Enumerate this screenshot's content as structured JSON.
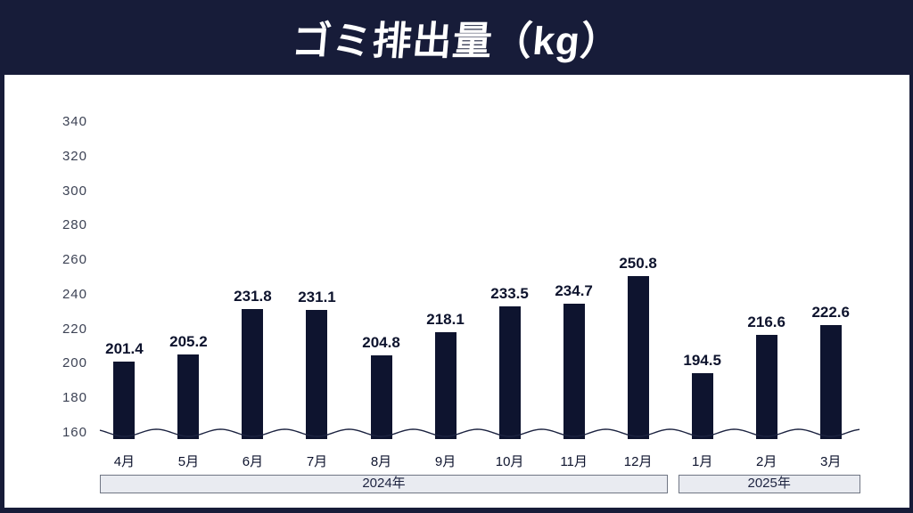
{
  "title": "ゴミ排出量（kg）",
  "colors": {
    "background": "#171c39",
    "bar": "#0e142f",
    "card": "#ffffff",
    "value_label": "#0d132d",
    "tick_label": "#3c4254",
    "band_fill": "#e9ebf1",
    "band_border": "#707684",
    "wave_line": "#1c2340"
  },
  "chart_data": {
    "type": "bar",
    "title": "ゴミ排出量（kg）",
    "unit": "kg",
    "categories": [
      "4月",
      "5月",
      "6月",
      "7月",
      "8月",
      "9月",
      "10月",
      "11月",
      "12月",
      "1月",
      "2月",
      "3月"
    ],
    "values": [
      201.4,
      205.2,
      231.8,
      231.1,
      204.8,
      218.1,
      233.5,
      234.7,
      250.8,
      194.5,
      216.6,
      222.6
    ],
    "y_ticks": [
      340,
      320,
      300,
      280,
      260,
      240,
      220,
      200,
      180,
      160
    ],
    "ylim": [
      160,
      350
    ],
    "axis_break_at_baseline": true,
    "grid": false,
    "legend": "none",
    "xlabel": "",
    "ylabel": "",
    "year_groups": [
      {
        "label": "2024年",
        "from": "4月",
        "to": "12月"
      },
      {
        "label": "2025年",
        "from": "1月",
        "to": "3月"
      }
    ]
  }
}
